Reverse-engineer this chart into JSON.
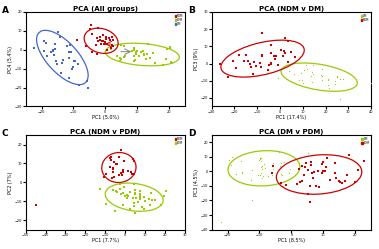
{
  "title_A": "PCA (All groups)",
  "title_B": "PCA (NDM v DM)",
  "title_C": "PCA (NDM v PDM)",
  "title_D": "PCA (DM v PDM)",
  "label_A": "A",
  "label_B": "B",
  "label_C": "C",
  "label_D": "D",
  "color_NDM": "#cc0000",
  "color_PDM": "#99cc00",
  "color_DM_blue": "#4466cc",
  "color_DM_dot": "#99cc00",
  "bg_color": "#ffffff",
  "xlim_A": [
    -25,
    25
  ],
  "ylim_A": [
    -30,
    20
  ],
  "xlim_B": [
    -30,
    40
  ],
  "ylim_B": [
    -25,
    30
  ],
  "xlim_C": [
    -50,
    30
  ],
  "ylim_C": [
    -25,
    25
  ],
  "xlim_D": [
    -25,
    25
  ],
  "ylim_D": [
    -40,
    25
  ],
  "xlabel_A": "PC1 (5.0%)",
  "ylabel_A": "PC4 (5.4%)",
  "xlabel_B": "PC1 (17.4%)",
  "ylabel_B": "PC3 (9%)",
  "xlabel_C": "PC1 (7.7%)",
  "ylabel_C": "PC2 (7%)",
  "xlabel_D": "PC1 (8.5%)",
  "ylabel_D": "PC3 (4.5%)"
}
